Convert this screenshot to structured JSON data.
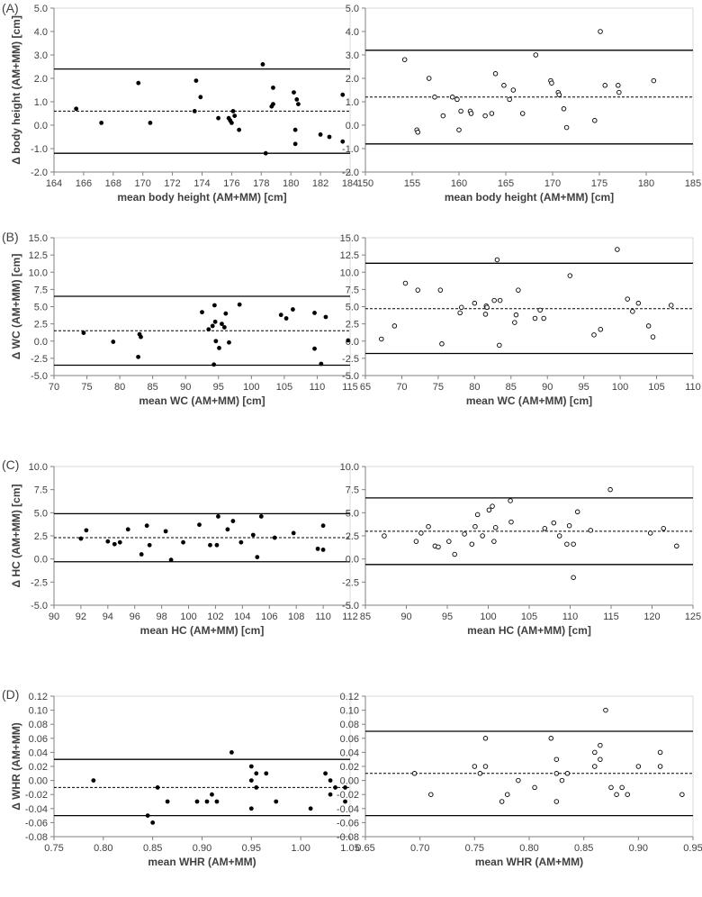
{
  "panel_labels": [
    "(A)",
    "(B)",
    "(C)",
    "(D)"
  ],
  "chart_data": [
    {
      "type": "scatter",
      "panel": "A",
      "marker": "filled",
      "xlabel": "mean body height (AM+MM) [cm]",
      "ylabel": "Δ body height (AM+MM) [cm]",
      "xlim": [
        164,
        184
      ],
      "ylim": [
        -2,
        5
      ],
      "x_ticks": [
        164,
        166,
        168,
        170,
        172,
        174,
        176,
        178,
        180,
        182,
        184
      ],
      "y_ticks": [
        -2,
        -1,
        0,
        1,
        2,
        3,
        4,
        5
      ],
      "x_tick_labels": [
        "164",
        "166",
        "168",
        "170",
        "172",
        "174",
        "176",
        "178",
        "180",
        "182",
        "184"
      ],
      "y_tick_labels": [
        "-2.0",
        "-1.0",
        "0.0",
        "1.0",
        "2.0",
        "3.0",
        "4.0",
        "5.0"
      ],
      "mean": 0.6,
      "loa_upper": 2.4,
      "loa_lower": -1.2,
      "points": [
        [
          165.5,
          0.7
        ],
        [
          167.2,
          0.1
        ],
        [
          169.7,
          1.8
        ],
        [
          170.5,
          0.1
        ],
        [
          173.5,
          0.6
        ],
        [
          173.6,
          1.9
        ],
        [
          173.9,
          1.2
        ],
        [
          175.1,
          0.3
        ],
        [
          175.8,
          0.3
        ],
        [
          175.9,
          0.2
        ],
        [
          176.0,
          0.1
        ],
        [
          176.1,
          0.6
        ],
        [
          176.2,
          0.4
        ],
        [
          176.5,
          -0.2
        ],
        [
          178.1,
          2.6
        ],
        [
          178.3,
          -1.2
        ],
        [
          178.7,
          0.8
        ],
        [
          178.8,
          1.6
        ],
        [
          178.8,
          0.9
        ],
        [
          180.2,
          1.4
        ],
        [
          180.3,
          -0.2
        ],
        [
          180.3,
          -0.8
        ],
        [
          180.4,
          1.1
        ],
        [
          180.5,
          0.9
        ],
        [
          182.0,
          -0.4
        ],
        [
          182.6,
          -0.5
        ],
        [
          183.5,
          1.3
        ],
        [
          183.5,
          -0.7
        ]
      ]
    },
    {
      "type": "scatter",
      "panel": "A",
      "marker": "open",
      "xlabel": "mean body height (AM+MM) [cm]",
      "ylabel": "",
      "xlim": [
        150,
        185
      ],
      "ylim": [
        -2,
        5
      ],
      "x_ticks": [
        150,
        155,
        160,
        165,
        170,
        175,
        180,
        185
      ],
      "y_ticks": [
        -2,
        -1,
        0,
        1,
        2,
        3,
        4,
        5
      ],
      "x_tick_labels": [
        "150",
        "155",
        "160",
        "165",
        "170",
        "175",
        "180",
        "185"
      ],
      "y_tick_labels": [
        "-2.0",
        "-1.0",
        "0.0",
        "1.0",
        "2.0",
        "3.0",
        "4.0",
        "5.0"
      ],
      "mean": 1.2,
      "loa_upper": 3.2,
      "loa_lower": -0.8,
      "points": [
        [
          154.2,
          2.8
        ],
        [
          155.5,
          -0.2
        ],
        [
          155.6,
          -0.3
        ],
        [
          156.8,
          2.0
        ],
        [
          157.4,
          1.2
        ],
        [
          158.3,
          0.4
        ],
        [
          159.3,
          1.2
        ],
        [
          159.8,
          1.1
        ],
        [
          160.0,
          -0.2
        ],
        [
          160.2,
          0.6
        ],
        [
          161.2,
          0.6
        ],
        [
          161.3,
          0.5
        ],
        [
          162.8,
          0.4
        ],
        [
          163.5,
          0.5
        ],
        [
          163.9,
          2.2
        ],
        [
          164.8,
          1.7
        ],
        [
          165.4,
          1.1
        ],
        [
          165.8,
          1.5
        ],
        [
          166.8,
          0.5
        ],
        [
          168.2,
          3.0
        ],
        [
          169.8,
          1.9
        ],
        [
          169.9,
          1.8
        ],
        [
          170.6,
          1.4
        ],
        [
          170.7,
          1.3
        ],
        [
          171.2,
          0.7
        ],
        [
          171.5,
          -0.1
        ],
        [
          174.5,
          0.2
        ],
        [
          175.1,
          4.0
        ],
        [
          175.6,
          1.7
        ],
        [
          177.0,
          1.7
        ],
        [
          177.1,
          1.4
        ],
        [
          180.8,
          1.9
        ]
      ]
    },
    {
      "type": "scatter",
      "panel": "B",
      "marker": "filled",
      "xlabel": "mean WC (AM+MM) [cm]",
      "ylabel": "Δ WC (AM+MM) [cm]",
      "xlim": [
        70,
        115
      ],
      "ylim": [
        -5,
        15
      ],
      "x_ticks": [
        70,
        75,
        80,
        85,
        90,
        95,
        100,
        105,
        110,
        115
      ],
      "y_ticks": [
        -5,
        -2.5,
        0,
        2.5,
        5,
        7.5,
        10,
        12.5,
        15
      ],
      "x_tick_labels": [
        "70",
        "75",
        "80",
        "85",
        "90",
        "95",
        "100",
        "105",
        "110",
        "115"
      ],
      "y_tick_labels": [
        "-5.0",
        "-2.5",
        "0.0",
        "2.5",
        "5.0",
        "7.5",
        "10.0",
        "12.5",
        "15.0"
      ],
      "mean": 1.5,
      "loa_upper": 6.5,
      "loa_lower": -3.5,
      "points": [
        [
          74.5,
          1.2
        ],
        [
          79,
          -0.1
        ],
        [
          82.8,
          -2.3
        ],
        [
          83,
          1.0
        ],
        [
          83.2,
          0.6
        ],
        [
          92.5,
          4.2
        ],
        [
          93.5,
          1.7
        ],
        [
          94.1,
          2.2
        ],
        [
          94.3,
          -3.4
        ],
        [
          94.4,
          5.2
        ],
        [
          94.5,
          2.8
        ],
        [
          94.6,
          0.0
        ],
        [
          95.1,
          -1.0
        ],
        [
          95.5,
          2.5
        ],
        [
          95.9,
          2.0
        ],
        [
          96.1,
          4.0
        ],
        [
          96.6,
          -0.2
        ],
        [
          98.2,
          5.3
        ],
        [
          104.5,
          3.8
        ],
        [
          105.3,
          3.3
        ],
        [
          106.3,
          4.6
        ],
        [
          109.6,
          4.1
        ],
        [
          109.6,
          -1.1
        ],
        [
          110.6,
          -3.3
        ],
        [
          111.3,
          3.5
        ],
        [
          114.7,
          0.1
        ]
      ]
    },
    {
      "type": "scatter",
      "panel": "B",
      "marker": "open",
      "xlabel": "mean WC (AM+MM) [cm]",
      "ylabel": "",
      "xlim": [
        65,
        110
      ],
      "ylim": [
        -5,
        15
      ],
      "x_ticks": [
        65,
        70,
        75,
        80,
        85,
        90,
        95,
        100,
        105,
        110
      ],
      "y_ticks": [
        -5,
        -2.5,
        0,
        2.5,
        5,
        7.5,
        10,
        12.5,
        15
      ],
      "x_tick_labels": [
        "65",
        "70",
        "75",
        "80",
        "85",
        "90",
        "95",
        "100",
        "105",
        "110"
      ],
      "y_tick_labels": [
        "-5.0",
        "-2.5",
        "0.0",
        "2.5",
        "5.0",
        "7.5",
        "10.0",
        "12.5",
        "15.0"
      ],
      "mean": 4.7,
      "loa_upper": 11.3,
      "loa_lower": -1.8,
      "points": [
        [
          67.2,
          0.3
        ],
        [
          69,
          2.2
        ],
        [
          70.5,
          8.4
        ],
        [
          72.2,
          7.4
        ],
        [
          75.3,
          7.4
        ],
        [
          75.5,
          -0.4
        ],
        [
          78,
          4.1
        ],
        [
          78.2,
          4.9
        ],
        [
          80,
          5.5
        ],
        [
          81.5,
          3.9
        ],
        [
          81.6,
          5.1
        ],
        [
          81.7,
          4.9
        ],
        [
          82.7,
          5.9
        ],
        [
          83.1,
          11.8
        ],
        [
          83.4,
          -0.6
        ],
        [
          83.5,
          5.9
        ],
        [
          85.5,
          2.7
        ],
        [
          85.7,
          3.8
        ],
        [
          86,
          7.4
        ],
        [
          88.3,
          3.3
        ],
        [
          89,
          4.5
        ],
        [
          89.5,
          3.3
        ],
        [
          93.1,
          9.5
        ],
        [
          96.4,
          0.9
        ],
        [
          97.3,
          1.7
        ],
        [
          99.6,
          13.3
        ],
        [
          101,
          6.1
        ],
        [
          101.7,
          4.3
        ],
        [
          102.5,
          5.5
        ],
        [
          103.9,
          2.2
        ],
        [
          104.5,
          0.6
        ],
        [
          107,
          5.2
        ]
      ]
    },
    {
      "type": "scatter",
      "panel": "C",
      "marker": "filled",
      "xlabel": "mean HC (AM+MM) [cm]",
      "ylabel": "Δ HC (AM+MM) [cm]",
      "xlim": [
        90,
        112
      ],
      "ylim": [
        -5,
        10
      ],
      "x_ticks": [
        90,
        92,
        94,
        96,
        98,
        100,
        102,
        104,
        106,
        108,
        110,
        112
      ],
      "y_ticks": [
        -5,
        -2.5,
        0,
        2.5,
        5,
        7.5,
        10
      ],
      "x_tick_labels": [
        "90",
        "92",
        "94",
        "96",
        "98",
        "100",
        "102",
        "104",
        "106",
        "108",
        "110",
        "112"
      ],
      "y_tick_labels": [
        "-5.0",
        "-2.5",
        "0.0",
        "2.5",
        "5.0",
        "7.5",
        "10.0"
      ],
      "mean": 2.3,
      "loa_upper": 4.9,
      "loa_lower": -0.3,
      "points": [
        [
          92,
          2.2
        ],
        [
          92.4,
          3.1
        ],
        [
          94,
          1.9
        ],
        [
          94.5,
          1.6
        ],
        [
          94.9,
          1.8
        ],
        [
          95.5,
          3.2
        ],
        [
          96.5,
          0.5
        ],
        [
          96.9,
          3.6
        ],
        [
          97.1,
          1.5
        ],
        [
          98.3,
          3.0
        ],
        [
          98.7,
          -0.1
        ],
        [
          99.6,
          1.8
        ],
        [
          100.8,
          3.7
        ],
        [
          101.6,
          1.5
        ],
        [
          102.1,
          1.5
        ],
        [
          102.2,
          4.6
        ],
        [
          102.9,
          3.2
        ],
        [
          103.3,
          4.1
        ],
        [
          103.9,
          1.8
        ],
        [
          104.8,
          2.6
        ],
        [
          105.1,
          0.2
        ],
        [
          105.4,
          4.6
        ],
        [
          106.4,
          2.3
        ],
        [
          107.8,
          2.8
        ],
        [
          109.6,
          1.1
        ],
        [
          110,
          1.0
        ],
        [
          110,
          3.6
        ]
      ]
    },
    {
      "type": "scatter",
      "panel": "C",
      "marker": "open",
      "xlabel": "mean HC (AM+MM) [cm]",
      "ylabel": "",
      "xlim": [
        85,
        125
      ],
      "ylim": [
        -5,
        10
      ],
      "x_ticks": [
        85,
        90,
        95,
        100,
        105,
        110,
        115,
        120,
        125
      ],
      "y_ticks": [
        -5,
        -2.5,
        0,
        2.5,
        5,
        7.5,
        10
      ],
      "x_tick_labels": [
        "85",
        "90",
        "95",
        "100",
        "105",
        "110",
        "115",
        "120",
        "125"
      ],
      "y_tick_labels": [
        "-5.0",
        "-2.5",
        "0.0",
        "2.5",
        "5.0",
        "7.5",
        "10.0"
      ],
      "mean": 3.0,
      "loa_upper": 6.6,
      "loa_lower": -0.6,
      "points": [
        [
          87.3,
          2.5
        ],
        [
          91.2,
          1.9
        ],
        [
          91.8,
          2.8
        ],
        [
          92.7,
          3.5
        ],
        [
          93.5,
          1.4
        ],
        [
          93.9,
          1.3
        ],
        [
          95.2,
          1.9
        ],
        [
          95.9,
          0.5
        ],
        [
          97.1,
          2.7
        ],
        [
          98,
          1.6
        ],
        [
          98.4,
          3.5
        ],
        [
          98.7,
          4.8
        ],
        [
          99.3,
          2.5
        ],
        [
          100.1,
          5.3
        ],
        [
          100.5,
          5.7
        ],
        [
          100.7,
          1.9
        ],
        [
          100.9,
          3.4
        ],
        [
          102.7,
          6.3
        ],
        [
          102.8,
          4.0
        ],
        [
          106.9,
          3.3
        ],
        [
          108,
          3.9
        ],
        [
          108.7,
          2.5
        ],
        [
          109.6,
          1.6
        ],
        [
          109.9,
          3.6
        ],
        [
          110.4,
          1.6
        ],
        [
          110.4,
          -2.0
        ],
        [
          110.9,
          5.1
        ],
        [
          112.5,
          3.1
        ],
        [
          114.9,
          7.5
        ],
        [
          119.8,
          2.8
        ],
        [
          121.4,
          3.3
        ],
        [
          123,
          1.4
        ]
      ]
    },
    {
      "type": "scatter",
      "panel": "D",
      "marker": "filled",
      "xlabel": "mean WHR (AM+MM)",
      "ylabel": "Δ WHR (AM+MM)",
      "xlim": [
        0.75,
        1.05
      ],
      "ylim": [
        -0.08,
        0.12
      ],
      "x_ticks": [
        0.75,
        0.8,
        0.85,
        0.9,
        0.95,
        1.0,
        1.05
      ],
      "y_ticks": [
        -0.08,
        -0.06,
        -0.04,
        -0.02,
        0,
        0.02,
        0.04,
        0.06,
        0.08,
        0.1,
        0.12
      ],
      "x_tick_labels": [
        "0.75",
        "0.80",
        "0.85",
        "0.90",
        "0.95",
        "1.00",
        "1.05"
      ],
      "y_tick_labels": [
        "-0.08",
        "-0.06",
        "-0.04",
        "-0.02",
        "0.00",
        "0.02",
        "0.04",
        "0.06",
        "0.08",
        "0.10",
        "0.12"
      ],
      "mean": -0.01,
      "loa_upper": 0.03,
      "loa_lower": -0.05,
      "points": [
        [
          0.79,
          0.0
        ],
        [
          0.845,
          -0.05
        ],
        [
          0.85,
          -0.06
        ],
        [
          0.855,
          -0.01
        ],
        [
          0.865,
          -0.03
        ],
        [
          0.895,
          -0.03
        ],
        [
          0.905,
          -0.03
        ],
        [
          0.91,
          -0.02
        ],
        [
          0.915,
          -0.03
        ],
        [
          0.93,
          0.04
        ],
        [
          0.95,
          0.02
        ],
        [
          0.95,
          0.0
        ],
        [
          0.95,
          -0.04
        ],
        [
          0.955,
          0.01
        ],
        [
          0.955,
          -0.01
        ],
        [
          0.965,
          0.01
        ],
        [
          0.975,
          -0.03
        ],
        [
          1.01,
          -0.04
        ],
        [
          1.025,
          0.01
        ],
        [
          1.03,
          0.0
        ],
        [
          1.03,
          -0.02
        ],
        [
          1.035,
          -0.01
        ],
        [
          1.045,
          -0.01
        ],
        [
          1.045,
          -0.03
        ]
      ]
    },
    {
      "type": "scatter",
      "panel": "D",
      "marker": "open",
      "xlabel": "mean WHR (AM+MM)",
      "ylabel": "",
      "xlim": [
        0.65,
        0.95
      ],
      "ylim": [
        -0.08,
        0.12
      ],
      "x_ticks": [
        0.65,
        0.7,
        0.75,
        0.8,
        0.85,
        0.9,
        0.95
      ],
      "y_ticks": [
        -0.08,
        -0.06,
        -0.04,
        -0.02,
        0,
        0.02,
        0.04,
        0.06,
        0.08,
        0.1,
        0.12
      ],
      "x_tick_labels": [
        "0.65",
        "0.70",
        "0.75",
        "0.80",
        "0.85",
        "0.90",
        "0.95"
      ],
      "y_tick_labels": [
        "-0.08",
        "-0.06",
        "-0.04",
        "-0.02",
        "0.00",
        "0.02",
        "0.04",
        "0.06",
        "0.08",
        "0.10",
        "0.12"
      ],
      "mean": 0.01,
      "loa_upper": 0.07,
      "loa_lower": -0.05,
      "points": [
        [
          0.695,
          0.01
        ],
        [
          0.71,
          -0.02
        ],
        [
          0.75,
          0.02
        ],
        [
          0.755,
          0.01
        ],
        [
          0.76,
          0.06
        ],
        [
          0.76,
          0.02
        ],
        [
          0.775,
          -0.03
        ],
        [
          0.78,
          -0.02
        ],
        [
          0.79,
          0.0
        ],
        [
          0.805,
          -0.01
        ],
        [
          0.82,
          0.06
        ],
        [
          0.825,
          0.03
        ],
        [
          0.825,
          0.01
        ],
        [
          0.825,
          -0.03
        ],
        [
          0.83,
          0.0
        ],
        [
          0.835,
          0.01
        ],
        [
          0.86,
          0.02
        ],
        [
          0.86,
          0.04
        ],
        [
          0.865,
          0.05
        ],
        [
          0.865,
          0.03
        ],
        [
          0.87,
          0.1
        ],
        [
          0.875,
          -0.01
        ],
        [
          0.88,
          -0.02
        ],
        [
          0.885,
          -0.01
        ],
        [
          0.89,
          -0.02
        ],
        [
          0.9,
          0.02
        ],
        [
          0.92,
          0.04
        ],
        [
          0.92,
          0.02
        ],
        [
          0.94,
          -0.02
        ]
      ]
    }
  ]
}
